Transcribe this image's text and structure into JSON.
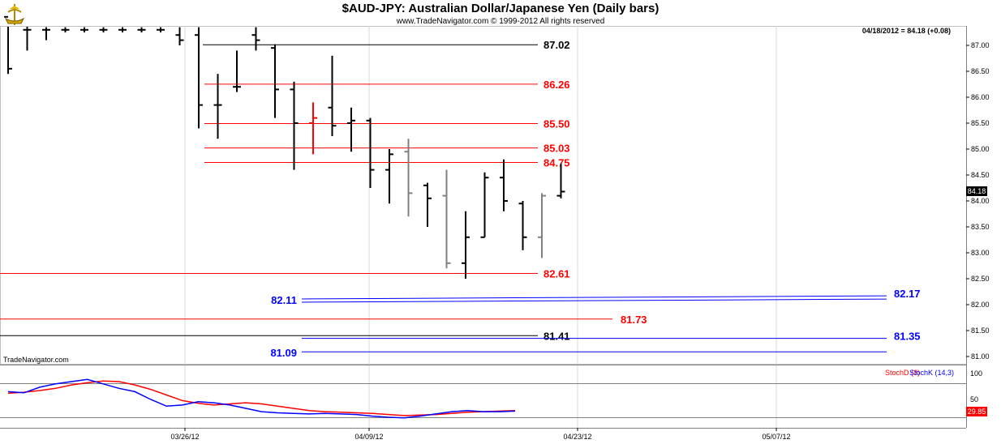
{
  "header": {
    "title": "$AUD-JPY:  Australian Dollar/Japanese Yen  (Daily bars)",
    "subtitle": "www.TradeNavigator.com © 1999-2012 All rights reserved",
    "date_readout": "04/18/2012 = 84.18 (+0.08)",
    "logo_icon": "tradenavigator-ship-logo-icon"
  },
  "chart_data": [
    {
      "type": "bar",
      "subtype": "ohlc",
      "ylim": [
        80.75,
        87.35
      ],
      "yticks": [
        "87.00",
        "86.50",
        "86.00",
        "85.50",
        "85.00",
        "84.50",
        "84.00",
        "83.50",
        "83.00",
        "82.50",
        "82.00",
        "81.50",
        "81.00"
      ],
      "xticks": [
        "03/26/12",
        "04/09/12",
        "04/23/12",
        "05/07/12"
      ],
      "last_price_label": "84.18",
      "bars": [
        {
          "o": 87.55,
          "h": 87.6,
          "l": 86.45,
          "c": 86.55,
          "color": "#000000"
        },
        {
          "o": 87.3,
          "h": 87.6,
          "l": 86.9,
          "c": 87.3,
          "color": "#000000"
        },
        {
          "o": 87.3,
          "h": 87.35,
          "l": 87.1,
          "c": 87.3,
          "color": "#000000"
        },
        {
          "o": 87.3,
          "h": 87.35,
          "l": 87.25,
          "c": 87.3,
          "color": "#000000"
        },
        {
          "o": 87.3,
          "h": 87.35,
          "l": 87.25,
          "c": 87.3,
          "color": "#000000"
        },
        {
          "o": 87.3,
          "h": 87.35,
          "l": 87.25,
          "c": 87.3,
          "color": "#000000"
        },
        {
          "o": 87.3,
          "h": 87.35,
          "l": 87.25,
          "c": 87.3,
          "color": "#000000"
        },
        {
          "o": 87.3,
          "h": 87.35,
          "l": 87.25,
          "c": 87.3,
          "color": "#000000"
        },
        {
          "o": 87.3,
          "h": 87.35,
          "l": 87.25,
          "c": 87.3,
          "color": "#000000"
        },
        {
          "o": 87.2,
          "h": 87.35,
          "l": 87.0,
          "c": 87.1,
          "color": "#000000"
        },
        {
          "o": 87.2,
          "h": 87.35,
          "l": 85.4,
          "c": 85.85,
          "color": "#000000"
        },
        {
          "o": 85.85,
          "h": 86.45,
          "l": 85.2,
          "c": 85.85,
          "color": "#000000"
        },
        {
          "o": 86.2,
          "h": 86.9,
          "l": 86.1,
          "c": 86.2,
          "color": "#000000"
        },
        {
          "o": 87.2,
          "h": 87.35,
          "l": 86.9,
          "c": 87.1,
          "color": "#000000"
        },
        {
          "o": 86.95,
          "h": 87.02,
          "l": 85.6,
          "c": 86.15,
          "color": "#000000"
        },
        {
          "o": 86.15,
          "h": 86.3,
          "l": 84.6,
          "c": 85.5,
          "color": "#000000"
        },
        {
          "o": 85.5,
          "h": 85.9,
          "l": 84.9,
          "c": 85.6,
          "color": "#ff0000"
        },
        {
          "o": 85.8,
          "h": 86.8,
          "l": 85.25,
          "c": 85.45,
          "color": "#000000"
        },
        {
          "o": 85.5,
          "h": 85.8,
          "l": 84.95,
          "c": 85.55,
          "color": "#000000"
        },
        {
          "o": 85.55,
          "h": 85.6,
          "l": 84.25,
          "c": 84.6,
          "color": "#000000"
        },
        {
          "o": 84.6,
          "h": 85.0,
          "l": 83.95,
          "c": 84.9,
          "color": "#000000"
        },
        {
          "o": 84.95,
          "h": 85.2,
          "l": 83.7,
          "c": 84.15,
          "color": "#808080"
        },
        {
          "o": 84.3,
          "h": 84.35,
          "l": 83.5,
          "c": 84.05,
          "color": "#000000"
        },
        {
          "o": 84.1,
          "h": 84.6,
          "l": 82.7,
          "c": 82.8,
          "color": "#808080"
        },
        {
          "o": 82.8,
          "h": 83.8,
          "l": 82.5,
          "c": 83.3,
          "color": "#000000"
        },
        {
          "o": 83.3,
          "h": 84.55,
          "l": 83.3,
          "c": 84.45,
          "color": "#000000"
        },
        {
          "o": 84.45,
          "h": 84.8,
          "l": 83.8,
          "c": 84.0,
          "color": "#000000"
        },
        {
          "o": 83.95,
          "h": 84.0,
          "l": 83.05,
          "c": 83.3,
          "color": "#000000"
        },
        {
          "o": 83.3,
          "h": 84.15,
          "l": 82.9,
          "c": 84.1,
          "color": "#808080"
        },
        {
          "o": 84.1,
          "h": 84.72,
          "l": 84.05,
          "c": 84.18,
          "color": "#000000"
        }
      ],
      "levels": [
        {
          "value": 87.02,
          "label": "87.02",
          "color": "#000000",
          "span": "short"
        },
        {
          "value": 86.26,
          "label": "86.26",
          "color": "#ff0000",
          "span": "short"
        },
        {
          "value": 85.5,
          "label": "85.50",
          "color": "#ff0000",
          "span": "short"
        },
        {
          "value": 85.03,
          "label": "85.03",
          "color": "#ff0000",
          "span": "short"
        },
        {
          "value": 84.75,
          "label": "84.75",
          "color": "#ff0000",
          "span": "short"
        },
        {
          "value": 82.61,
          "label": "82.61",
          "color": "#ff0000",
          "span": "short"
        },
        {
          "value": 81.73,
          "label": "81.73",
          "color": "#ff0000",
          "span": "mid"
        },
        {
          "value": 81.41,
          "label": "81.41",
          "color": "#000000",
          "span": "short"
        }
      ],
      "blue_levels": [
        {
          "value_left": 82.11,
          "value_right": 82.17,
          "label_left": "82.11",
          "label_right": "82.17",
          "color": "#0000ff"
        },
        {
          "value_left": 81.35,
          "value_right": 81.35,
          "label_left": "",
          "label_right": "81.35",
          "color": "#0000ff"
        },
        {
          "value_left": 81.09,
          "value_right": 81.09,
          "label_left": "81.09",
          "label_right": "",
          "color": "#0000ff"
        }
      ]
    },
    {
      "type": "line",
      "title": "TradeNavigator.com",
      "ylim": [
        20,
        100
      ],
      "yticks": [
        "100",
        "50"
      ],
      "last_value_label": "29.85",
      "series": [
        {
          "name": "StochD (3)",
          "color": "#ff0000",
          "values": [
            63,
            65,
            68,
            72,
            78,
            82,
            85,
            84,
            78,
            70,
            60,
            50,
            45,
            42,
            44,
            46,
            44,
            40,
            36,
            32,
            30,
            29,
            28,
            27,
            25,
            23,
            24,
            25,
            27,
            29,
            30,
            31,
            32
          ]
        },
        {
          "name": "StochK (14,3)",
          "color": "#0000ff",
          "values": [
            66,
            64,
            74,
            80,
            84,
            88,
            80,
            72,
            66,
            52,
            40,
            42,
            48,
            46,
            42,
            36,
            30,
            28,
            27,
            26,
            27,
            26,
            25,
            22,
            20,
            19,
            22,
            26,
            30,
            32,
            30,
            30,
            31
          ]
        }
      ]
    }
  ]
}
